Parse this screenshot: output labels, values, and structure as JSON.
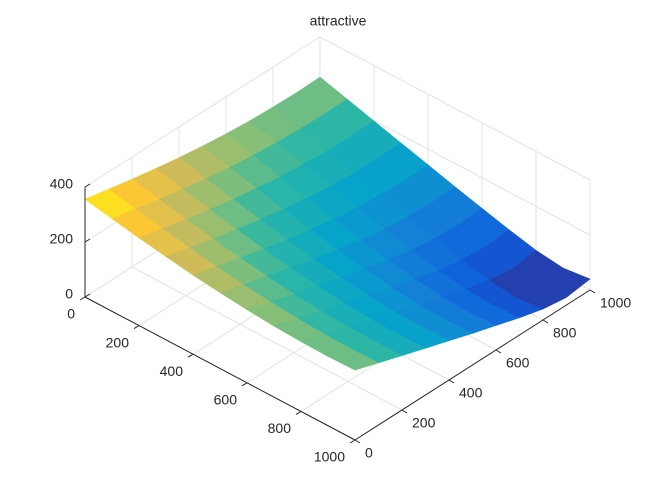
{
  "chart_data": {
    "type": "surface",
    "title": "attractive",
    "x": [
      0,
      100,
      200,
      300,
      400,
      500,
      600,
      700,
      800,
      900,
      1000
    ],
    "y": [
      0,
      100,
      200,
      300,
      400,
      500,
      600,
      700,
      800,
      900,
      1000
    ],
    "z": [
      [
        356,
        337,
        319,
        303,
        288,
        276,
        266,
        258,
        254,
        252,
        254
      ],
      [
        337,
        317,
        298,
        280,
        264,
        250,
        239,
        231,
        226,
        224,
        226
      ],
      [
        319,
        298,
        277,
        258,
        241,
        226,
        213,
        204,
        198,
        196,
        198
      ],
      [
        303,
        280,
        258,
        238,
        219,
        202,
        188,
        177,
        170,
        168,
        170
      ],
      [
        288,
        264,
        241,
        219,
        198,
        179,
        163,
        151,
        143,
        140,
        143
      ],
      [
        276,
        250,
        226,
        202,
        179,
        158,
        140,
        125,
        115,
        112,
        115
      ],
      [
        266,
        239,
        213,
        188,
        163,
        140,
        119,
        101,
        89,
        84,
        89
      ],
      [
        258,
        231,
        204,
        177,
        151,
        125,
        101,
        79,
        63,
        56,
        63
      ],
      [
        254,
        226,
        198,
        170,
        143,
        115,
        89,
        63,
        40,
        28,
        40
      ],
      [
        252,
        224,
        196,
        168,
        140,
        112,
        84,
        56,
        28,
        0,
        28
      ],
      [
        254,
        226,
        198,
        170,
        143,
        115,
        89,
        63,
        40,
        28,
        40
      ]
    ],
    "xlim": [
      0,
      1000
    ],
    "ylim": [
      0,
      1000
    ],
    "zlim": [
      0,
      400
    ],
    "xticks": [
      0,
      200,
      400,
      600,
      800,
      1000
    ],
    "yticks": [
      0,
      200,
      400,
      600,
      800,
      1000
    ],
    "zticks": [
      0,
      200,
      400
    ],
    "grid": true,
    "colormap": "parula"
  }
}
